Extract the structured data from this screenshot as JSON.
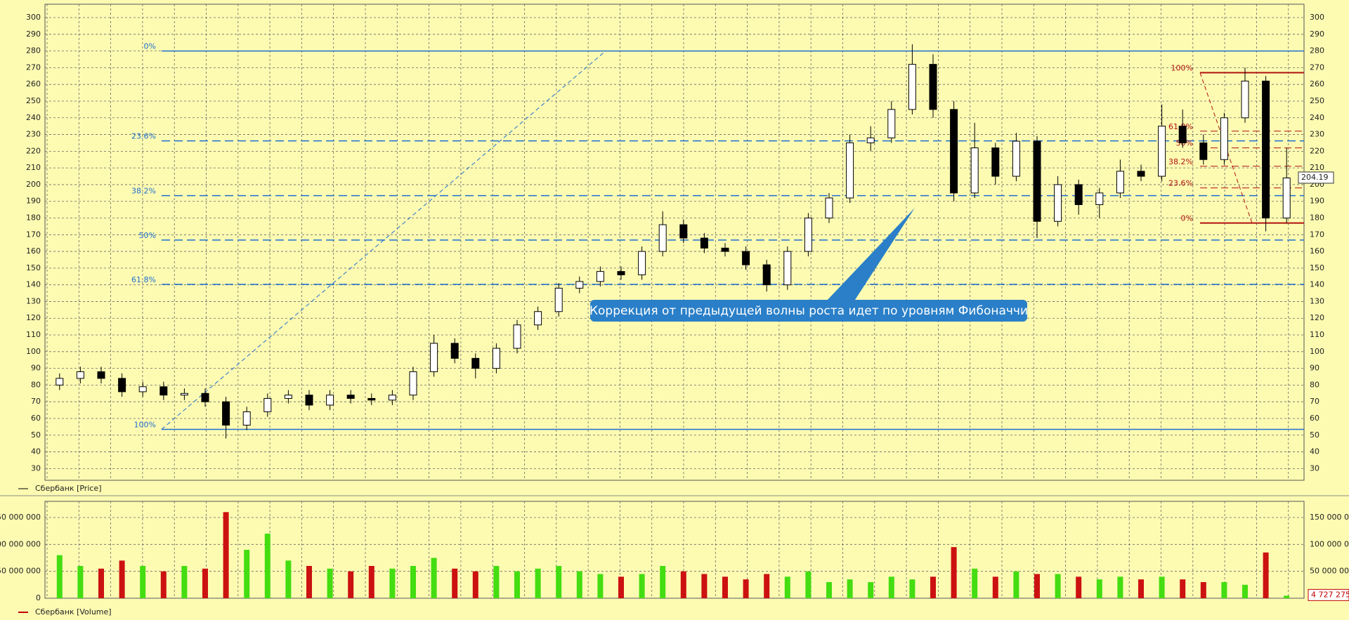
{
  "chart_data": [
    {
      "type": "candlestick",
      "series": [
        {
          "name": "Сбербанк [Price]",
          "color": "#000000",
          "up_fill": "#ffffff",
          "down_fill": "#000000",
          "open": [
            80,
            84,
            88,
            84,
            76,
            79,
            74,
            75,
            70,
            56,
            64,
            72,
            74,
            68,
            74,
            72,
            71,
            74,
            88,
            105,
            96,
            90,
            102,
            116,
            124,
            138,
            142,
            148,
            146,
            160,
            176,
            168,
            162,
            160,
            152,
            140,
            160,
            180,
            192,
            225,
            228,
            245,
            272,
            245,
            195,
            222,
            205,
            226,
            178,
            200,
            188,
            195,
            208,
            205,
            235,
            225,
            215,
            240,
            262,
            180
          ],
          "high": [
            87,
            91,
            91,
            87,
            82,
            82,
            78,
            78,
            73,
            67,
            75,
            77,
            77,
            77,
            77,
            75,
            77,
            91,
            110,
            108,
            99,
            105,
            119,
            127,
            141,
            145,
            151,
            151,
            163,
            184,
            179,
            171,
            165,
            163,
            155,
            163,
            183,
            195,
            230,
            235,
            250,
            284,
            278,
            250,
            237,
            225,
            231,
            229,
            205,
            203,
            198,
            215,
            212,
            248,
            245,
            230,
            243,
            270,
            265,
            222
          ],
          "low": [
            77,
            81,
            81,
            73,
            73,
            71,
            71,
            67,
            48,
            53,
            61,
            69,
            65,
            65,
            69,
            68,
            68,
            71,
            85,
            93,
            84,
            87,
            99,
            113,
            121,
            135,
            139,
            143,
            143,
            157,
            165,
            159,
            157,
            149,
            136,
            137,
            157,
            177,
            189,
            220,
            225,
            242,
            240,
            190,
            192,
            200,
            202,
            168,
            175,
            182,
            180,
            192,
            202,
            202,
            222,
            212,
            212,
            237,
            172,
            177
          ],
          "close": [
            84,
            88,
            84,
            76,
            79,
            74,
            75,
            70,
            56,
            64,
            72,
            74,
            68,
            74,
            72,
            71,
            74,
            88,
            105,
            96,
            90,
            102,
            116,
            124,
            138,
            142,
            148,
            146,
            160,
            176,
            168,
            162,
            160,
            152,
            140,
            160,
            180,
            192,
            225,
            228,
            245,
            272,
            245,
            195,
            222,
            205,
            226,
            178,
            200,
            188,
            195,
            208,
            205,
            235,
            225,
            215,
            240,
            262,
            180,
            204
          ]
        }
      ],
      "ylim": [
        23,
        308
      ],
      "yticks": [
        30,
        40,
        50,
        60,
        70,
        80,
        90,
        100,
        110,
        120,
        130,
        140,
        150,
        160,
        170,
        180,
        190,
        200,
        210,
        220,
        230,
        240,
        250,
        260,
        270,
        280,
        290,
        300
      ],
      "grid": true,
      "last_value": 204.19,
      "fib_color": "#1f6fd0",
      "fib_levels": [
        {
          "label": "0%",
          "value": 280,
          "style": "solid"
        },
        {
          "label": "23.6%",
          "value": 226.2,
          "style": "dashed"
        },
        {
          "label": "38.2%",
          "value": 193.4,
          "style": "dashed"
        },
        {
          "label": "50%",
          "value": 166.8,
          "style": "dashed"
        },
        {
          "label": "61.8%",
          "value": 140.3,
          "style": "dashed"
        },
        {
          "label": "100%",
          "value": 53.5,
          "style": "solid"
        }
      ],
      "fib_color_2": "#b01010",
      "fib_levels_2": [
        {
          "label": "100%",
          "value": 267,
          "style": "solid"
        },
        {
          "label": "61.8%",
          "value": 232,
          "style": "dashed"
        },
        {
          "label": "50%",
          "value": 222,
          "style": "dashed"
        },
        {
          "label": "38.2%",
          "value": 211,
          "style": "dashed"
        },
        {
          "label": "23.6%",
          "value": 198,
          "style": "dashed"
        },
        {
          "label": "0%",
          "value": 177,
          "style": "solid"
        }
      ],
      "annotation": "Коррекция от предыдущей волны роста идет по уровням Фибоначчи"
    },
    {
      "type": "bar",
      "series": [
        {
          "name": "Сбербанк [Volume]",
          "color": "#c00000",
          "values": [
            80000000,
            60000000,
            55000000,
            70000000,
            60000000,
            50000000,
            60000000,
            55000000,
            160000000,
            90000000,
            120000000,
            70000000,
            60000000,
            55000000,
            50000000,
            60000000,
            55000000,
            60000000,
            75000000,
            55000000,
            50000000,
            60000000,
            50000000,
            55000000,
            60000000,
            50000000,
            45000000,
            40000000,
            45000000,
            60000000,
            50000000,
            45000000,
            40000000,
            35000000,
            45000000,
            40000000,
            50000000,
            30000000,
            35000000,
            30000000,
            40000000,
            35000000,
            40000000,
            95000000,
            55000000,
            40000000,
            50000000,
            45000000,
            45000000,
            40000000,
            35000000,
            40000000,
            35000000,
            40000000,
            35000000,
            30000000,
            30000000,
            25000000,
            85000000,
            4727275
          ]
        }
      ],
      "up_color": "#44dd11",
      "down_color": "#cc1111",
      "ylim": [
        0,
        180000000
      ],
      "yticks": [
        0,
        {
          "value": 50000000,
          "label": "50 000 000"
        },
        {
          "value": 100000000,
          "label": "100 000 000"
        },
        {
          "value": 150000000,
          "label": "150 000 000"
        }
      ],
      "grid": true,
      "last_value": 4727275,
      "last_value_label": "4 727 275"
    }
  ]
}
